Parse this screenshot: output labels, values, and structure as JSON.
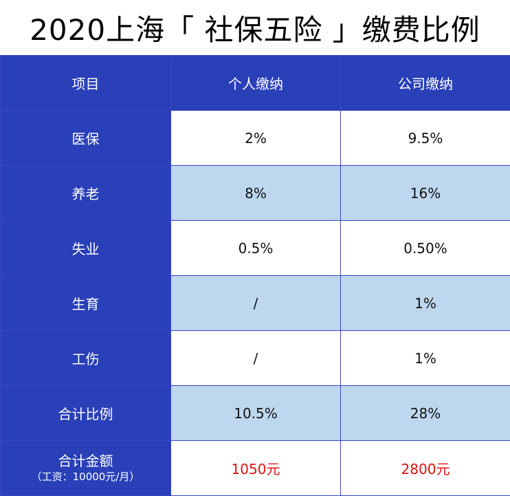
{
  "title": "2020上海「 社保五险 」缴费比例",
  "colors": {
    "header_blue": "#2940b8",
    "row_light_blue": "#bdd7ee",
    "amount_red": "#e01010"
  },
  "table": {
    "headers": [
      "项目",
      "个人缴纳",
      "公司缴纳"
    ],
    "rows": [
      {
        "item": "医保",
        "personal": "2%",
        "company": "9.5%"
      },
      {
        "item": "养老",
        "personal": "8%",
        "company": "16%"
      },
      {
        "item": "失业",
        "personal": "0.5%",
        "company": "0.50%"
      },
      {
        "item": "生育",
        "personal": "/",
        "company": "1%"
      },
      {
        "item": "工伤",
        "personal": "/",
        "company": "1%"
      },
      {
        "item": "合计比例",
        "personal": "10.5%",
        "company": "28%"
      }
    ],
    "total_amount": {
      "label": "合计金额",
      "note": "（工资：10000元/月）",
      "personal": "1050元",
      "company": "2800元"
    }
  }
}
